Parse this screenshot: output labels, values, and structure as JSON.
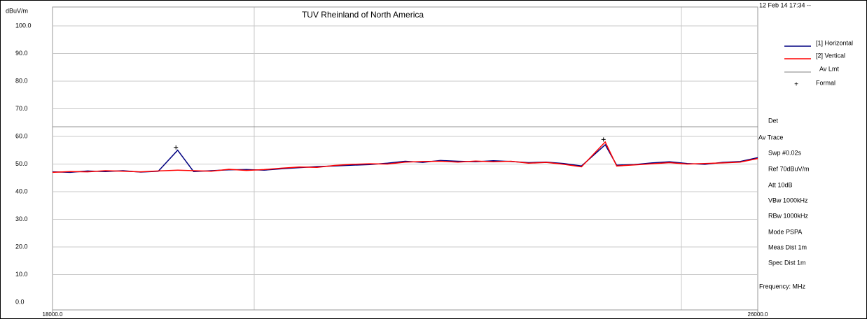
{
  "chart_data": {
    "type": "line",
    "title": "TUV Rheinland of North America",
    "y_label": "dBuV/m",
    "x_label": "Frequency: MHz",
    "timestamp": "12 Feb 14 17:34 --",
    "settings": [
      "Det",
      "Av Trace",
      "Swp  #0.02s",
      "Ref  70dBuV/m",
      "Att  10dB",
      "VBw 1000kHz",
      "RBw 1000kHz",
      "Mode  PSPA",
      "Meas Dist 1m",
      "Spec Dist 1m"
    ],
    "xlim": [
      18000,
      26000
    ],
    "xticks": [
      {
        "value": 18000,
        "label": "18000.0"
      },
      {
        "value": 26000,
        "label": "26000.0"
      }
    ],
    "ylim": [
      0,
      100
    ],
    "yticks": [
      {
        "value": 0,
        "label": "0.0"
      },
      {
        "value": 10,
        "label": "10.0"
      },
      {
        "value": 20,
        "label": "20.0"
      },
      {
        "value": 30,
        "label": "30.0"
      },
      {
        "value": 40,
        "label": "40.0"
      },
      {
        "value": 50,
        "label": "50.0"
      },
      {
        "value": 60,
        "label": "60.0"
      },
      {
        "value": 70,
        "label": "70.0"
      },
      {
        "value": 80,
        "label": "80.0"
      },
      {
        "value": 90,
        "label": "90.0"
      },
      {
        "value": 100,
        "label": "100.0"
      }
    ],
    "grid": true,
    "series": [
      {
        "name": "[1] Horizontal",
        "color": "#000080",
        "marker": "line",
        "x": [
          18000,
          18200,
          18400,
          18600,
          18800,
          19000,
          19200,
          19420,
          19600,
          19800,
          20000,
          20200,
          20400,
          20600,
          20800,
          21000,
          21200,
          21400,
          21600,
          21800,
          22000,
          22200,
          22400,
          22600,
          22800,
          23000,
          23200,
          23400,
          23600,
          23800,
          24000,
          24270,
          24400,
          24600,
          24800,
          25000,
          25200,
          25400,
          25600,
          25800,
          26000
        ],
        "values": [
          47.2,
          47.0,
          47.5,
          47.3,
          47.6,
          47.1,
          47.4,
          55.0,
          47.3,
          47.6,
          47.9,
          48.0,
          47.8,
          48.3,
          48.7,
          49.1,
          49.3,
          49.6,
          49.8,
          50.3,
          51.0,
          50.6,
          51.3,
          51.0,
          50.8,
          51.2,
          50.9,
          50.5,
          50.7,
          50.2,
          49.3,
          57.0,
          49.6,
          49.8,
          50.4,
          50.8,
          50.2,
          49.9,
          50.6,
          50.9,
          52.3
        ]
      },
      {
        "name": "[2] Vertical",
        "color": "#ff0000",
        "marker": "line",
        "x": [
          18000,
          18200,
          18400,
          18600,
          18800,
          19000,
          19200,
          19420,
          19600,
          19800,
          20000,
          20200,
          20400,
          20600,
          20800,
          21000,
          21200,
          21400,
          21600,
          21800,
          22000,
          22200,
          22400,
          22600,
          22800,
          23000,
          23200,
          23400,
          23600,
          23800,
          24000,
          24270,
          24400,
          24600,
          24800,
          25000,
          25200,
          25400,
          25600,
          25800,
          26000
        ],
        "values": [
          47.0,
          47.3,
          47.2,
          47.6,
          47.4,
          47.2,
          47.5,
          47.8,
          47.6,
          47.4,
          48.1,
          47.7,
          48.0,
          48.5,
          48.9,
          48.8,
          49.5,
          49.9,
          50.1,
          50.0,
          50.7,
          50.9,
          51.0,
          50.7,
          51.1,
          50.8,
          51.0,
          50.3,
          50.6,
          49.9,
          49.0,
          58.0,
          49.3,
          49.7,
          50.1,
          50.5,
          50.0,
          50.2,
          50.4,
          50.7,
          52.0
        ]
      },
      {
        "name": "Av Lmt",
        "color": "#808080",
        "marker": "line",
        "x": [
          18000,
          26000
        ],
        "values": [
          63.5,
          63.5
        ]
      },
      {
        "name": "Formal",
        "color": "#000000",
        "marker": "+",
        "x": [
          19400,
          24250
        ],
        "values": [
          56.0,
          58.9
        ]
      }
    ]
  }
}
